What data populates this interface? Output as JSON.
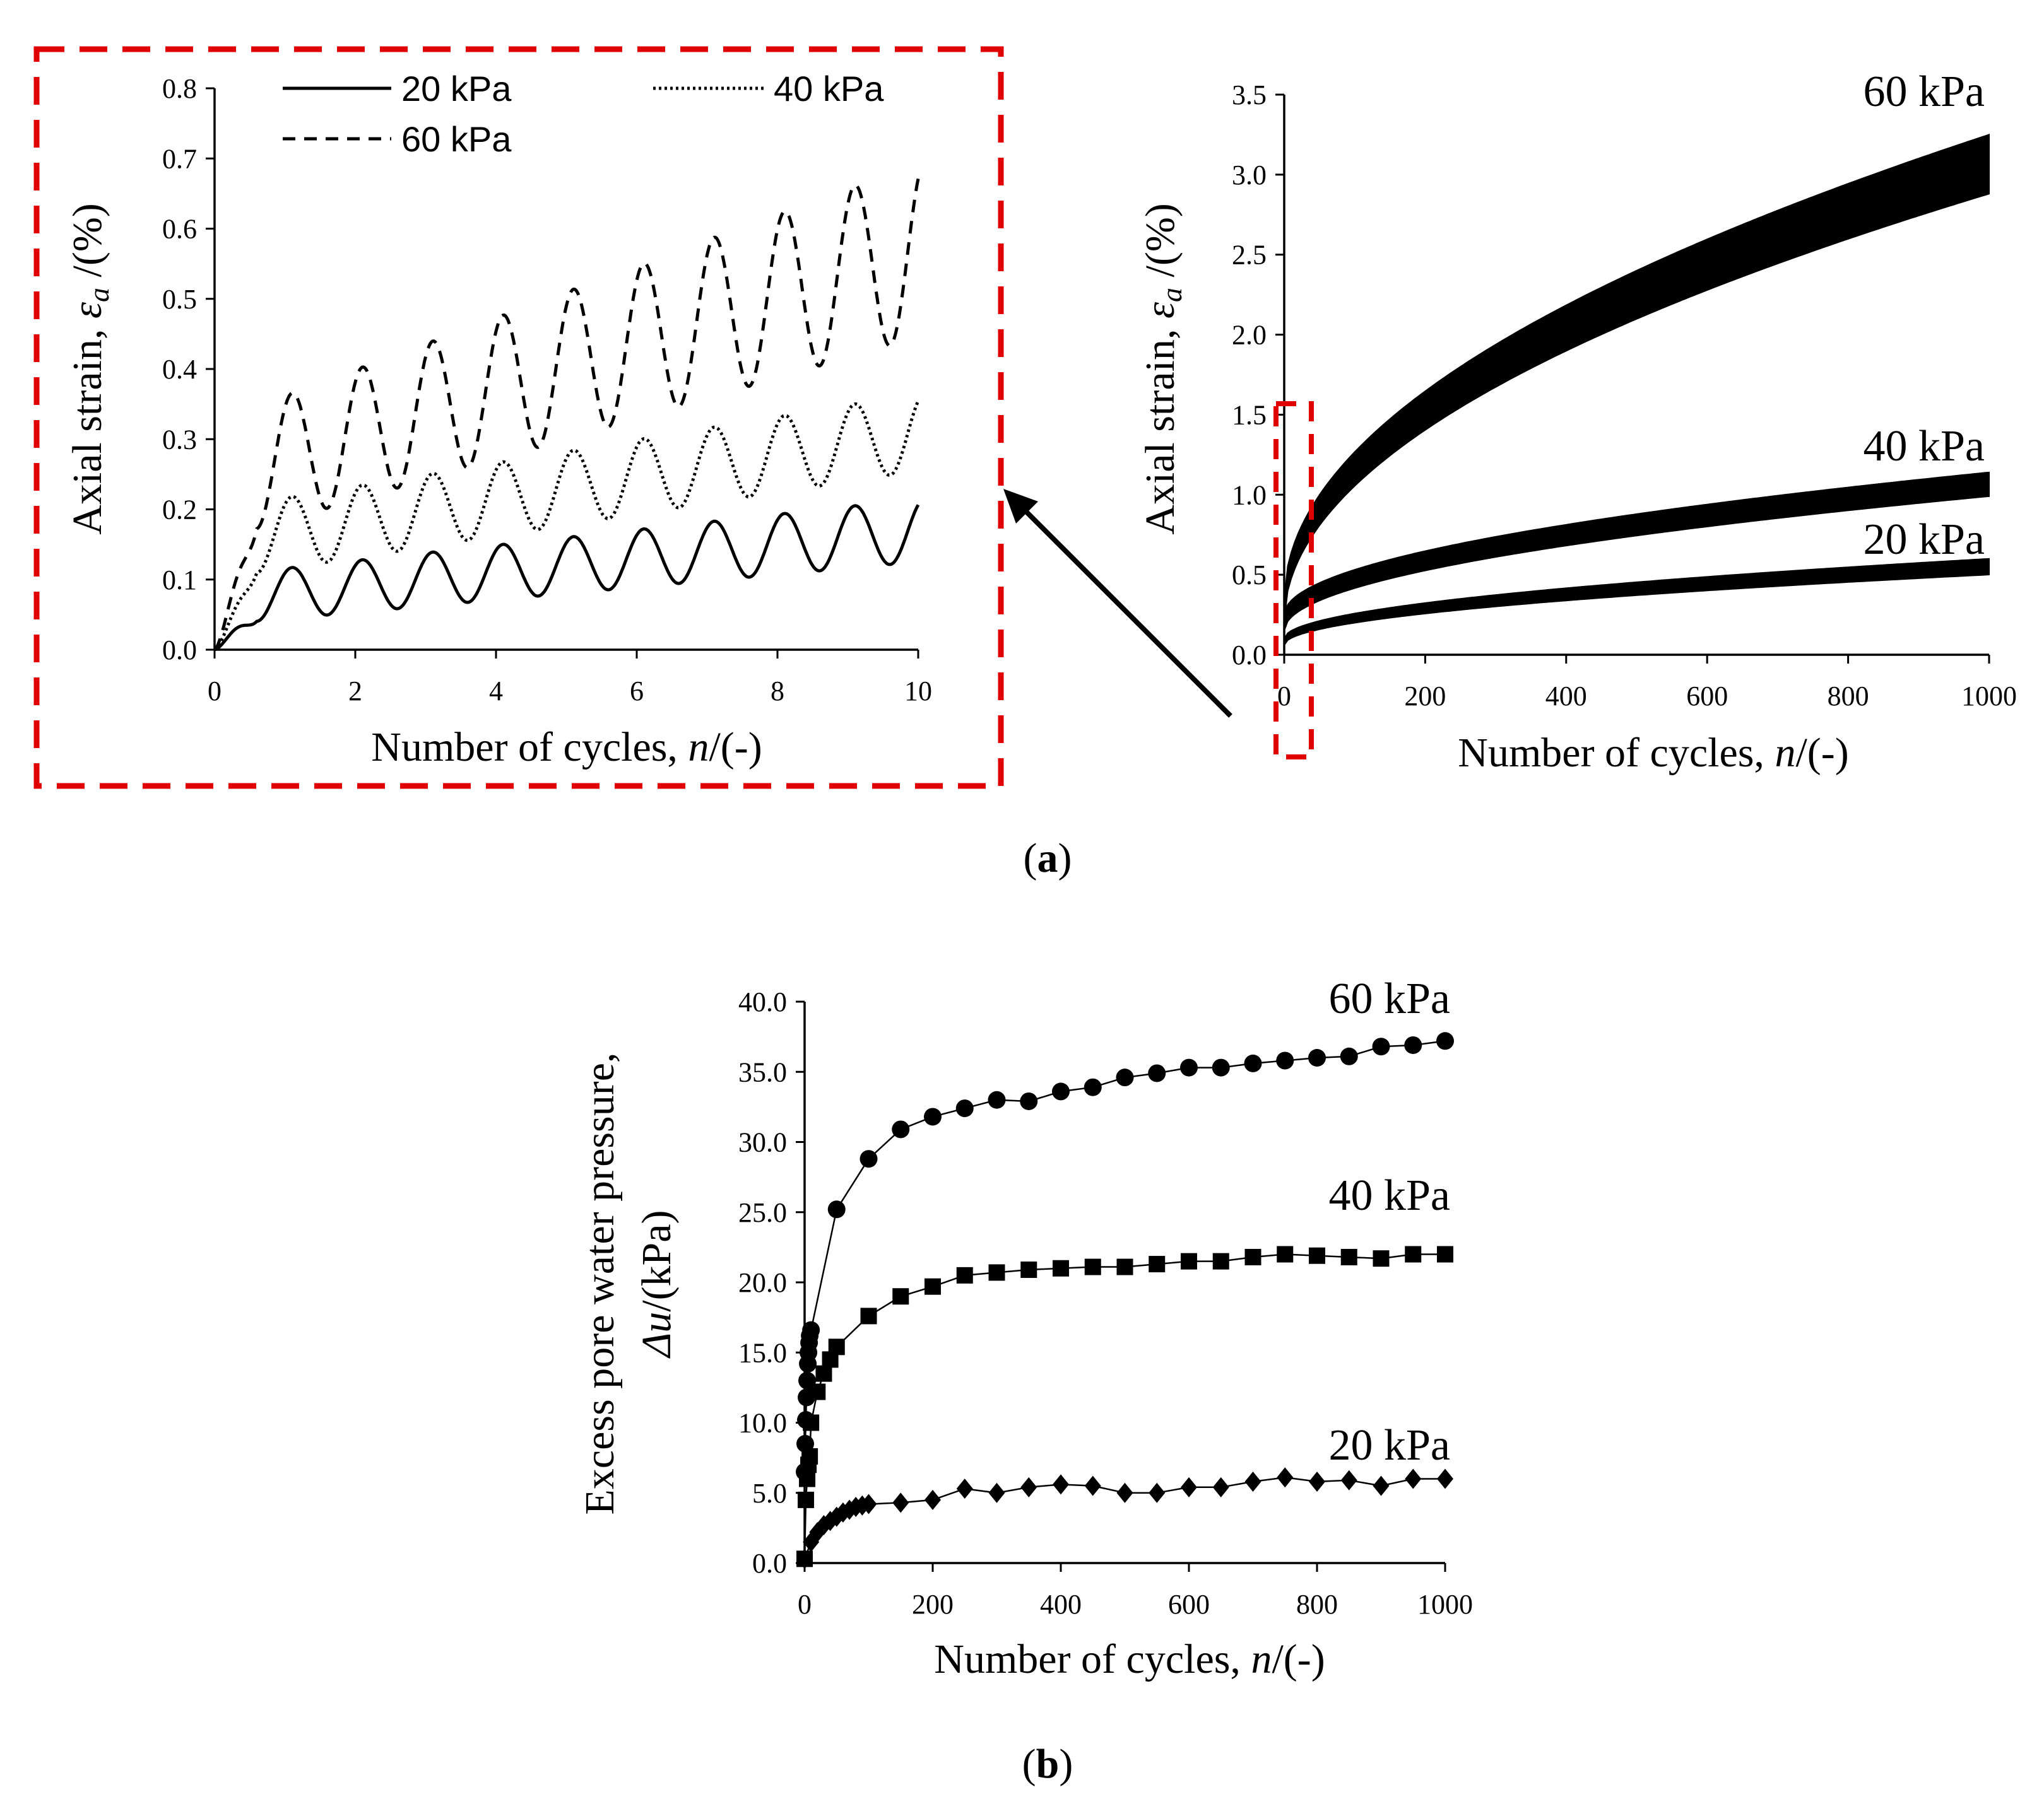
{
  "colors": {
    "frame": "#e00000",
    "ink": "#000000",
    "background": "#ffffff"
  },
  "panel_a_label": "a",
  "panel_b_label": "b",
  "chart_data": [
    {
      "id": "a-inset",
      "type": "line",
      "title": "",
      "xlabel": "Number of cycles, ",
      "xlabel_var": "n",
      "xlabel_unit": "/(-)",
      "ylabel": "Axial strain, ",
      "ylabel_var": "ε",
      "ylabel_sub": "a",
      "ylabel_unit": " /(%)",
      "xlim": [
        0,
        10
      ],
      "ylim": [
        0,
        0.8
      ],
      "xticks": [
        "0",
        "2",
        "4",
        "6",
        "8",
        "10"
      ],
      "yticks": [
        "0.0",
        "0.1",
        "0.2",
        "0.3",
        "0.4",
        "0.5",
        "0.6",
        "0.7",
        "0.8"
      ],
      "legend_position": "top",
      "series": [
        {
          "name": "20 kPa",
          "style": "solid",
          "mean_start": 0.07,
          "mean_end": 0.17,
          "amp_start": 0.035,
          "amp_end": 0.045
        },
        {
          "name": "40 kPa",
          "style": "dotted",
          "mean_start": 0.15,
          "mean_end": 0.31,
          "amp_start": 0.05,
          "amp_end": 0.055
        },
        {
          "name": "60 kPa",
          "style": "dashed",
          "mean_start": 0.24,
          "mean_end": 0.57,
          "amp_start": 0.085,
          "amp_end": 0.125
        }
      ]
    },
    {
      "id": "a-main",
      "type": "area",
      "title": "",
      "xlabel": "Number of cycles, ",
      "xlabel_var": "n",
      "xlabel_unit": "/(-)",
      "ylabel": "Axial strain, ",
      "ylabel_var": "ε",
      "ylabel_sub": "a",
      "ylabel_unit": " /(%)",
      "xlim": [
        0,
        1000
      ],
      "ylim": [
        0,
        3.5
      ],
      "xticks": [
        "0",
        "200",
        "400",
        "600",
        "800",
        "1000"
      ],
      "yticks": [
        "0.0",
        "0.5",
        "1.0",
        "1.5",
        "2.0",
        "2.5",
        "3.0",
        "3.5"
      ],
      "series": [
        {
          "name": "60 kPa",
          "lower_end": 2.88,
          "upper_end": 3.25,
          "start": 0.35
        },
        {
          "name": "40 kPa",
          "lower_end": 0.99,
          "upper_end": 1.14,
          "start": 0.25
        },
        {
          "name": "20 kPa",
          "lower_end": 0.5,
          "upper_end": 0.6,
          "start": 0.1
        }
      ]
    },
    {
      "id": "b",
      "type": "line",
      "title": "",
      "xlabel": "Number of cycles, ",
      "xlabel_var": "n",
      "xlabel_unit": "/(-)",
      "ylabel_line1": "Excess pore water pressure,",
      "ylabel_var": "Δu",
      "ylabel_unit": "/(kPa)",
      "xlim": [
        0,
        1000
      ],
      "ylim": [
        0,
        40
      ],
      "xticks": [
        "0",
        "200",
        "400",
        "600",
        "800",
        "1000"
      ],
      "yticks": [
        "0.0",
        "5.0",
        "10.0",
        "15.0",
        "20.0",
        "25.0",
        "30.0",
        "35.0",
        "40.0"
      ],
      "series": [
        {
          "name": "60 kPa",
          "marker": "circle",
          "x": [
            0,
            1,
            2,
            3,
            4,
            5,
            6,
            7,
            8,
            10,
            50,
            100,
            150,
            200,
            250,
            300,
            350,
            400,
            450,
            500,
            550,
            600,
            650,
            700,
            750,
            800,
            850,
            900,
            950,
            1000
          ],
          "y": [
            6.5,
            8.5,
            10.2,
            11.8,
            13.0,
            14.2,
            15.0,
            15.7,
            16.2,
            16.6,
            25.2,
            28.8,
            30.9,
            31.8,
            32.4,
            33.0,
            32.9,
            33.6,
            33.9,
            34.6,
            34.9,
            35.3,
            35.3,
            35.6,
            35.8,
            36.0,
            36.1,
            36.8,
            36.9,
            37.2
          ]
        },
        {
          "name": "40 kPa",
          "marker": "square",
          "x": [
            0,
            2,
            4,
            6,
            8,
            10,
            20,
            30,
            40,
            50,
            100,
            150,
            200,
            250,
            300,
            350,
            400,
            450,
            500,
            550,
            600,
            650,
            700,
            750,
            800,
            850,
            900,
            950,
            1000
          ],
          "y": [
            0.3,
            4.5,
            6.0,
            7.0,
            7.6,
            10.0,
            12.2,
            13.5,
            14.5,
            15.4,
            17.6,
            19.0,
            19.7,
            20.5,
            20.7,
            20.9,
            21.0,
            21.1,
            21.1,
            21.3,
            21.5,
            21.5,
            21.8,
            22.0,
            21.9,
            21.8,
            21.7,
            22.0,
            22.0
          ]
        },
        {
          "name": "20 kPa",
          "marker": "diamond",
          "x": [
            0,
            10,
            20,
            30,
            40,
            50,
            60,
            70,
            80,
            90,
            100,
            150,
            200,
            250,
            300,
            350,
            400,
            450,
            500,
            550,
            600,
            650,
            700,
            750,
            800,
            850,
            900,
            950,
            1000
          ],
          "y": [
            0.3,
            1.5,
            2.2,
            2.7,
            3.0,
            3.3,
            3.6,
            3.8,
            4.0,
            4.1,
            4.2,
            4.3,
            4.5,
            5.3,
            5.0,
            5.4,
            5.6,
            5.5,
            5.0,
            5.0,
            5.4,
            5.4,
            5.8,
            6.1,
            5.8,
            5.9,
            5.5,
            6.0,
            6.0
          ]
        }
      ]
    }
  ]
}
